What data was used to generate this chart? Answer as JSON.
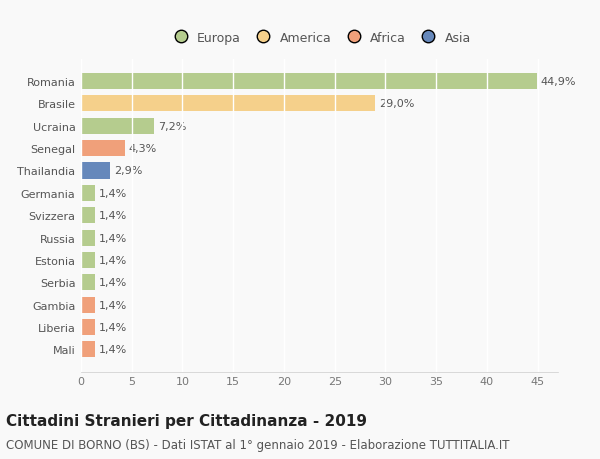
{
  "categories": [
    "Romania",
    "Brasile",
    "Ucraina",
    "Senegal",
    "Thailandia",
    "Germania",
    "Svizzera",
    "Russia",
    "Estonia",
    "Serbia",
    "Gambia",
    "Liberia",
    "Mali"
  ],
  "values": [
    44.9,
    29.0,
    7.2,
    4.3,
    2.9,
    1.4,
    1.4,
    1.4,
    1.4,
    1.4,
    1.4,
    1.4,
    1.4
  ],
  "labels": [
    "44,9%",
    "29,0%",
    "7,2%",
    "4,3%",
    "2,9%",
    "1,4%",
    "1,4%",
    "1,4%",
    "1,4%",
    "1,4%",
    "1,4%",
    "1,4%",
    "1,4%"
  ],
  "continents": [
    "Europa",
    "America",
    "Europa",
    "Africa",
    "Asia",
    "Europa",
    "Europa",
    "Europa",
    "Europa",
    "Europa",
    "Africa",
    "Africa",
    "Africa"
  ],
  "colors": {
    "Europa": "#b5cc8e",
    "America": "#f5d08b",
    "Africa": "#f0a07a",
    "Asia": "#6688bb"
  },
  "legend_order": [
    "Europa",
    "America",
    "Africa",
    "Asia"
  ],
  "title": "Cittadini Stranieri per Cittadinanza - 2019",
  "subtitle": "COMUNE DI BORNO (BS) - Dati ISTAT al 1° gennaio 2019 - Elaborazione TUTTITALIA.IT",
  "xlim": [
    0,
    47
  ],
  "xticks": [
    0,
    5,
    10,
    15,
    20,
    25,
    30,
    35,
    40,
    45
  ],
  "background_color": "#f9f9f9",
  "grid_color": "#ffffff",
  "bar_height": 0.72,
  "title_fontsize": 11,
  "subtitle_fontsize": 8.5,
  "label_fontsize": 8,
  "tick_fontsize": 8,
  "legend_fontsize": 9
}
